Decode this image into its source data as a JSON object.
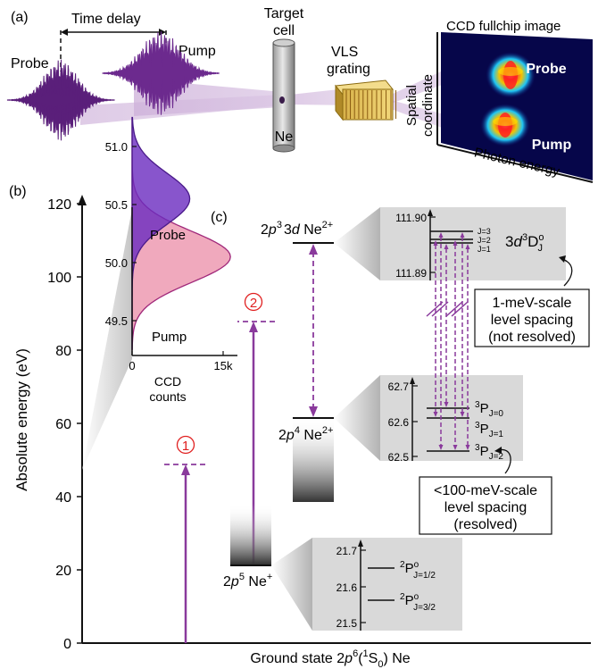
{
  "panel_a": {
    "label": "(a)",
    "time_delay": "Time delay",
    "probe": "Probe",
    "pump": "Pump",
    "target_cell": [
      "Target",
      "cell"
    ],
    "ne": "Ne",
    "vls": [
      "VLS",
      "grating"
    ],
    "spatial": [
      "Spatial",
      "coordinate"
    ],
    "ccd_title": "CCD fullchip image",
    "ccd_probe": "Probe",
    "ccd_pump": "Pump",
    "photon_energy": "Photon energy"
  },
  "panel_b": {
    "label": "(b)",
    "ylabel": "Absolute energy (eV)",
    "xlabel_pre": "Ground state 2",
    "xlabel_p": "p",
    "xlabel_sup6": "6",
    "xlabel_paren_open": "(",
    "xlabel_sup1": "1",
    "xlabel_S": "S",
    "xlabel_sub0": "0",
    "xlabel_post": ") Ne",
    "yticks": [
      "0",
      "20",
      "40",
      "60",
      "80",
      "100",
      "120"
    ],
    "pump_arrow_level": 51,
    "probe_arrow_level": 72,
    "marker_1": "1",
    "marker_2": "2",
    "ne_plus": {
      "pre": "2",
      "p": "p",
      "sup": "5",
      "name": " Ne",
      "charge": "+",
      "energy": 21.6
    },
    "ne_2plus_2p4": {
      "pre": "2",
      "p": "p",
      "sup": "4",
      "name": " Ne",
      "charge": "2+",
      "energy": 62.6
    },
    "ne_2plus_3d": {
      "pre": "2",
      "p": "p",
      "sup": "3",
      "mid": "3",
      "d": "d",
      "name": " Ne",
      "charge": "2+",
      "energy": 111.9
    },
    "inset_3d": {
      "yticks": [
        "111.90",
        "111.89"
      ],
      "j_labels": [
        "J=3",
        "J=2",
        "J=1"
      ],
      "term": {
        "a": "3",
        "d": "d",
        "sup3": "3",
        "D": "D",
        "supo": "o",
        "subJ": "J"
      }
    },
    "inset_2p4": {
      "yticks": [
        "62.7",
        "62.6",
        "62.5"
      ],
      "terms": [
        {
          "sup": "3",
          "L": "P",
          "sub": "J=0"
        },
        {
          "sup": "3",
          "L": "P",
          "sub": "J=1"
        },
        {
          "sup": "3",
          "L": "P",
          "sub": "J=2"
        }
      ]
    },
    "inset_2p5": {
      "yticks": [
        "21.7",
        "21.6",
        "21.5"
      ],
      "terms": [
        {
          "sup": "2",
          "L": "P",
          "supo": "o",
          "sub": "J=1/2"
        },
        {
          "sup": "2",
          "L": "P",
          "supo": "o",
          "sub": "J=3/2"
        }
      ]
    },
    "callout_1meV": [
      "1-meV-scale",
      "level spacing",
      "(not resolved)"
    ],
    "callout_100meV": [
      "<100-meV-scale",
      "level spacing",
      "(resolved)"
    ]
  },
  "panel_c": {
    "label": "(c)",
    "yticks": [
      "51.0",
      "50.5",
      "50.0",
      "49.5"
    ],
    "xticks": [
      "0",
      "15k"
    ],
    "xlabel": [
      "CCD",
      "counts"
    ],
    "probe": "Probe",
    "pump": "Pump"
  },
  "colors": {
    "purple": "#8a3a9c",
    "dark_purple": "#5b2a7a",
    "probe_fill": "#6a2bbf",
    "pump_fill": "#f0a9bd",
    "red_marker": "#e02020",
    "inset_gray": "#d9d9d9"
  }
}
